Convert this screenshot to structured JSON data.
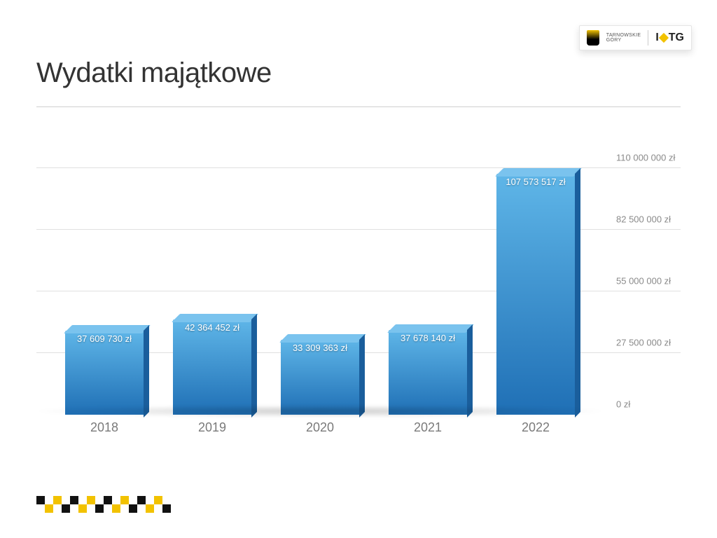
{
  "title": "Wydatki majątkowe",
  "logo": {
    "crest_text_line1": "TARNOWSKIE",
    "crest_text_line2": "GÓRY",
    "brand_prefix": "I",
    "brand_suffix": "TG"
  },
  "chart": {
    "type": "bar",
    "y_max": 110000000,
    "y_min": 0,
    "y_ticks": [
      0,
      27500000,
      55000000,
      82500000,
      110000000
    ],
    "y_tick_labels": [
      "0 zł",
      "27 500 000 zł",
      "55 000 000 zł",
      "82 500 000 zł",
      "110 000 000 zł"
    ],
    "grid_color": "#e0e0e0",
    "bar_gradient_top": "#5fb6e8",
    "bar_gradient_bottom": "#1f6fb5",
    "bar_top_face": "#7ac3ee",
    "bar_side_face": "#1a5e9c",
    "value_text_color": "#ffffff",
    "categories": [
      "2018",
      "2019",
      "2020",
      "2021",
      "2022"
    ],
    "values": [
      37609730,
      42364452,
      33309363,
      37678140,
      107573517
    ],
    "value_labels": [
      "37 609 730 zł",
      "42 364 452 zł",
      "33 309 363 zł",
      "37 678 140 zł",
      "107 573 517 zł"
    ],
    "bar_width_ratio": 0.75,
    "axis_label_color": "#7a7a7a",
    "axis_label_fontsize": 18,
    "ytick_label_color": "#8a8a8a",
    "ytick_label_fontsize": 13
  },
  "checker_colors": {
    "a": "#111111",
    "b": "#f2c200",
    "pattern": [
      [
        "a",
        "",
        "b",
        "",
        "a",
        "",
        "b",
        "",
        "a",
        "",
        "b",
        "",
        "a",
        "",
        "b",
        ""
      ],
      [
        "",
        "b",
        "",
        "a",
        "",
        "b",
        "",
        "a",
        "",
        "b",
        "",
        "a",
        "",
        "b",
        "",
        "a"
      ]
    ]
  }
}
